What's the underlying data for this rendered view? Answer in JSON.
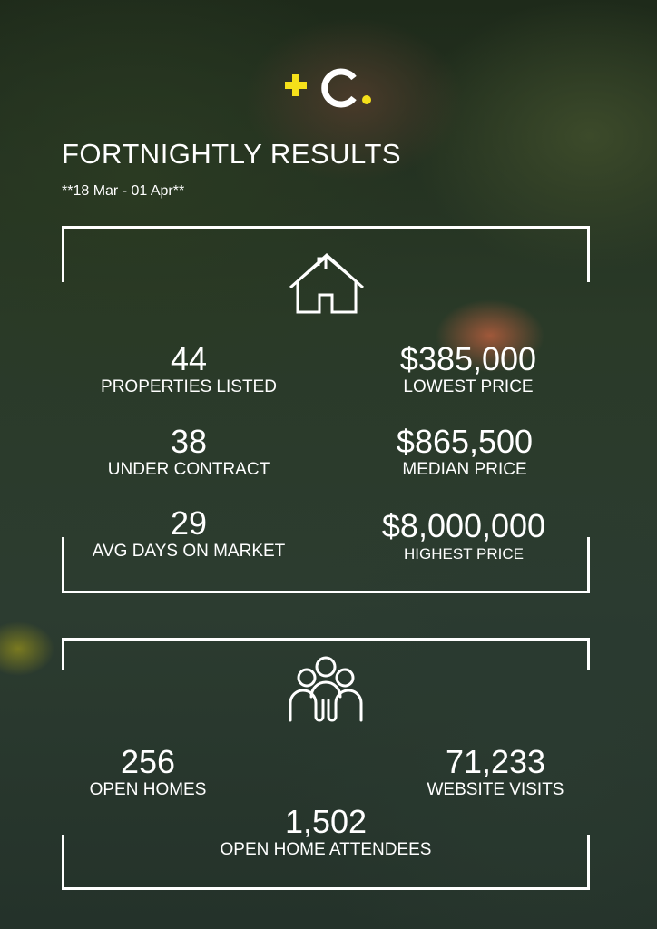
{
  "brand": {
    "logo_text": "+C.",
    "accent": "#f5e01a"
  },
  "header": {
    "title": "FORTNIGHTLY RESULTS",
    "date_range": "**18 Mar - 01 Apr**"
  },
  "listings": {
    "icon": "house-icon",
    "stats": [
      {
        "value": "44",
        "label": "PROPERTIES LISTED"
      },
      {
        "value": "$385,000",
        "label": "LOWEST PRICE"
      },
      {
        "value": "38",
        "label": "UNDER CONTRACT"
      },
      {
        "value": "$865,500",
        "label": "MEDIAN PRICE"
      },
      {
        "value": "29",
        "label": "AVG DAYS ON MARKET"
      },
      {
        "value": "$8,000,000",
        "label": "HIGHEST PRICE"
      }
    ]
  },
  "engagement": {
    "icon": "people-icon",
    "stats": [
      {
        "value": "256",
        "label": "OPEN HOMES"
      },
      {
        "value": "71,233",
        "label": "WEBSITE VISITS"
      },
      {
        "value": "1,502",
        "label": "OPEN HOME ATTENDEES"
      }
    ]
  }
}
